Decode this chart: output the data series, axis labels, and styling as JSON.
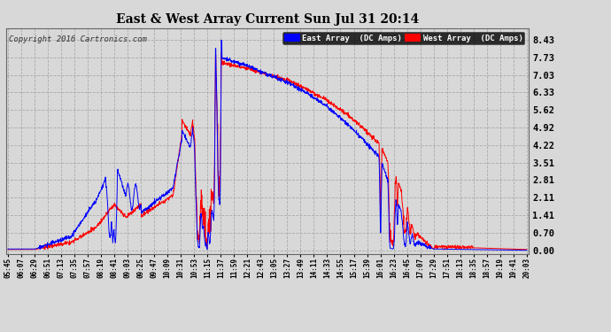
{
  "title": "East & West Array Current Sun Jul 31 20:14",
  "copyright": "Copyright 2016 Cartronics.com",
  "legend_east": "East Array  (DC Amps)",
  "legend_west": "West Array  (DC Amps)",
  "east_color": "#0000ff",
  "west_color": "#ff0000",
  "bg_color": "#d8d8d8",
  "plot_bg": "#d8d8d8",
  "grid_color": "#aaaaaa",
  "yticks": [
    0.0,
    0.7,
    1.41,
    2.11,
    2.81,
    3.51,
    4.22,
    4.92,
    5.62,
    6.33,
    7.03,
    7.73,
    8.43
  ],
  "ylim": [
    -0.15,
    8.9
  ],
  "xtick_labels": [
    "05:45",
    "06:07",
    "06:29",
    "06:51",
    "07:13",
    "07:35",
    "07:57",
    "08:19",
    "08:41",
    "09:03",
    "09:25",
    "09:47",
    "10:09",
    "10:31",
    "10:53",
    "11:15",
    "11:37",
    "11:59",
    "12:21",
    "12:43",
    "13:05",
    "13:27",
    "13:49",
    "14:11",
    "14:33",
    "14:55",
    "15:17",
    "15:39",
    "16:01",
    "16:23",
    "16:45",
    "17:07",
    "17:29",
    "17:51",
    "18:13",
    "18:35",
    "18:57",
    "19:19",
    "19:41",
    "20:03"
  ],
  "figsize": [
    6.9,
    3.75
  ],
  "dpi": 100
}
